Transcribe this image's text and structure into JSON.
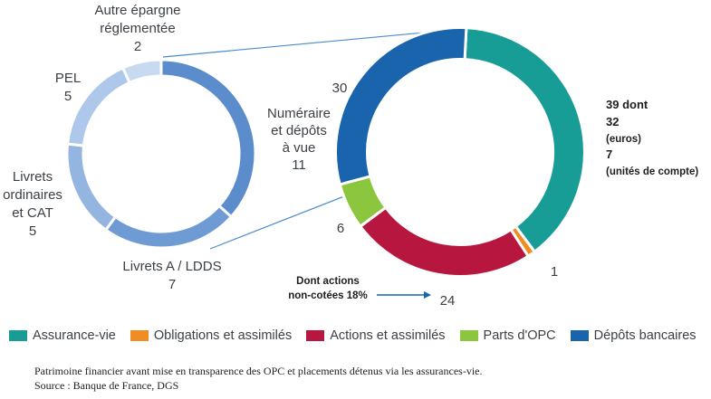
{
  "chart_data": [
    {
      "type": "pie",
      "slices": [
        {
          "id": "numeraire",
          "label_lines": [
            "Numéraire",
            "et dépôts",
            "à vue"
          ],
          "value": 11,
          "color": "#5b8ccc"
        },
        {
          "id": "livrets-a",
          "label_lines": [
            "Livrets A / LDDS"
          ],
          "value": 7,
          "color": "#6f9bd4"
        },
        {
          "id": "livrets-ord",
          "label_lines": [
            "Livrets",
            "ordinaires",
            "et CAT"
          ],
          "value": 5,
          "color": "#93b5e0"
        },
        {
          "id": "pel",
          "label_lines": [
            "PEL"
          ],
          "value": 5,
          "color": "#adc8ea"
        },
        {
          "id": "autre",
          "label_lines": [
            "Autre épargne",
            "réglementée"
          ],
          "value": 2,
          "color": "#c8daf2"
        }
      ]
    },
    {
      "type": "pie",
      "slices": [
        {
          "id": "assurance-vie",
          "value": 39,
          "color": "#189d96",
          "label_lines": [
            "39 dont",
            "32",
            "(euros)",
            "7",
            "(unités de compte)"
          ]
        },
        {
          "id": "obligations",
          "value": 1,
          "color": "#f08c24",
          "label_lines": [
            "1"
          ]
        },
        {
          "id": "actions",
          "value": 24,
          "color": "#b7173e",
          "label_lines": [
            "24"
          ]
        },
        {
          "id": "parts-opc",
          "value": 6,
          "color": "#8cc63f",
          "label_lines": [
            "6"
          ]
        },
        {
          "id": "depots",
          "value": 30,
          "color": "#1a64ad",
          "label_lines": [
            "30"
          ]
        }
      ],
      "annotation": [
        "Dont actions",
        "non-cotées 18%"
      ]
    }
  ],
  "legend": [
    {
      "label": "Assurance-vie",
      "color": "#189d96"
    },
    {
      "label": "Obligations et assimilés",
      "color": "#f08c24"
    },
    {
      "label": "Actions et assimilés",
      "color": "#b7173e"
    },
    {
      "label": "Parts d'OPC",
      "color": "#8cc63f"
    },
    {
      "label": "Dépôts bancaires",
      "color": "#1a64ad"
    }
  ],
  "notes": {
    "line1": "Patrimoine financier avant mise en transparence des OPC et placements détenus via les assurances-vie.",
    "line2": "Source : Banque de France, DGS"
  }
}
